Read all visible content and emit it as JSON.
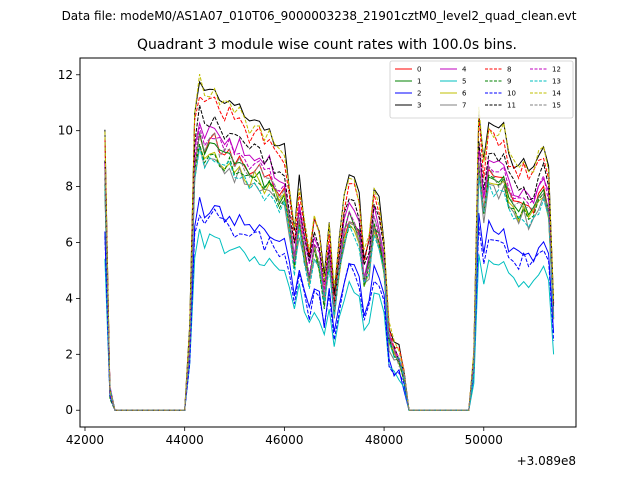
{
  "suptitle": "Data file: modeM0/AS1A07_010T06_9000003238_21901cztM0_level2_quad_clean.evt",
  "chart_data": {
    "type": "line",
    "title": "Quadrant 3 module wise count rates with 100.0s bins.",
    "xlabel": "",
    "ylabel": "",
    "x_offset_label": "+3.089e8",
    "xlim": [
      41900,
      51850
    ],
    "ylim": [
      -0.6,
      12.6
    ],
    "xticks": [
      42000,
      44000,
      46000,
      48000,
      50000
    ],
    "yticks": [
      0,
      2,
      4,
      6,
      8,
      10,
      12
    ],
    "grid": false,
    "legend_position": "top-right",
    "x": [
      42400,
      42500,
      42600,
      42700,
      42800,
      42900,
      43000,
      43100,
      43200,
      43300,
      43400,
      43500,
      43600,
      43700,
      43800,
      43900,
      44000,
      44100,
      44200,
      44300,
      44400,
      44500,
      44600,
      44700,
      44800,
      44900,
      45000,
      45100,
      45200,
      45300,
      45400,
      45500,
      45600,
      45700,
      45800,
      45900,
      46000,
      46100,
      46200,
      46300,
      46400,
      46500,
      46600,
      46700,
      46800,
      46900,
      47000,
      47100,
      47200,
      47300,
      47400,
      47500,
      47600,
      47700,
      47800,
      47900,
      48000,
      48100,
      48200,
      48300,
      48400,
      48500,
      48600,
      48700,
      48800,
      48900,
      49000,
      49100,
      49200,
      49300,
      49400,
      49500,
      49600,
      49700,
      49800,
      49900,
      50000,
      50100,
      50200,
      50300,
      50400,
      50500,
      50600,
      50700,
      50800,
      50900,
      51000,
      51100,
      51200,
      51300,
      51400
    ],
    "series_base": [
      10.1,
      0.8,
      0.0,
      0.0,
      0.0,
      0.0,
      0.0,
      0.0,
      0.0,
      0.0,
      0.0,
      0.0,
      0.0,
      0.0,
      0.0,
      0.0,
      0.0,
      2.8,
      10.6,
      11.9,
      11.3,
      11.5,
      11.7,
      11.2,
      11.0,
      11.2,
      10.7,
      10.9,
      10.5,
      10.2,
      10.4,
      10.3,
      9.9,
      10.1,
      9.6,
      9.3,
      9.4,
      8.1,
      6.4,
      8.2,
      6.8,
      5.7,
      7.0,
      6.4,
      4.8,
      6.7,
      4.2,
      6.1,
      7.6,
      8.4,
      8.2,
      7.6,
      5.6,
      6.3,
      8.1,
      7.5,
      6.2,
      3.0,
      2.3,
      2.2,
      1.5,
      0.0,
      0.0,
      0.0,
      0.0,
      0.0,
      0.0,
      0.0,
      0.0,
      0.0,
      0.0,
      0.0,
      0.0,
      0.0,
      2.0,
      10.8,
      8.8,
      10.4,
      10.1,
      9.9,
      10.2,
      9.3,
      8.9,
      8.7,
      9.0,
      8.6,
      8.7,
      9.2,
      9.6,
      8.8,
      4.0
    ],
    "series": [
      {
        "name": "0",
        "color": "#ff0000",
        "dash": false,
        "scale": 0.83
      },
      {
        "name": "1",
        "color": "#008000",
        "dash": false,
        "scale": 0.82
      },
      {
        "name": "2",
        "color": "#0000ff",
        "dash": false,
        "scale": 0.63
      },
      {
        "name": "3",
        "color": "#000000",
        "dash": false,
        "scale": 1.0
      },
      {
        "name": "4",
        "color": "#bf00bf",
        "dash": false,
        "scale": 0.88
      },
      {
        "name": "5",
        "color": "#00bfbf",
        "dash": false,
        "scale": 0.53
      },
      {
        "name": "6",
        "color": "#bfbf00",
        "dash": false,
        "scale": 0.8
      },
      {
        "name": "7",
        "color": "#808080",
        "dash": false,
        "scale": 0.78
      },
      {
        "name": "8",
        "color": "#ff0000",
        "dash": true,
        "scale": 0.96
      },
      {
        "name": "9",
        "color": "#008000",
        "dash": true,
        "scale": 0.8
      },
      {
        "name": "10",
        "color": "#0000ff",
        "dash": true,
        "scale": 0.6
      },
      {
        "name": "11",
        "color": "#000000",
        "dash": true,
        "scale": 0.9
      },
      {
        "name": "12",
        "color": "#bf00bf",
        "dash": true,
        "scale": 0.85
      },
      {
        "name": "13",
        "color": "#00bfbf",
        "dash": true,
        "scale": 0.78
      },
      {
        "name": "14",
        "color": "#bfbf00",
        "dash": true,
        "scale": 0.99
      },
      {
        "name": "15",
        "color": "#808080",
        "dash": true,
        "scale": 0.83
      }
    ]
  }
}
